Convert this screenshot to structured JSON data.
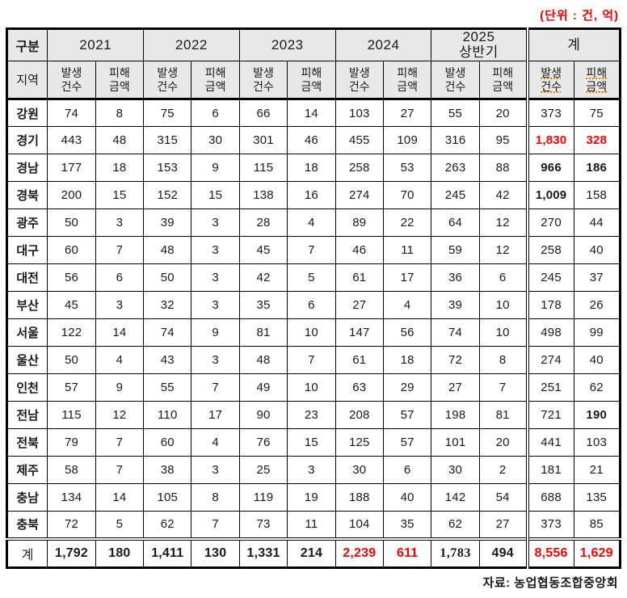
{
  "unit_label": "(단위 : 건, 억)",
  "source_label": "자료: 농업협동조합중앙회",
  "colors": {
    "accent_red": "#ff0000",
    "header_bg": "#e8e8e8",
    "squiggle_orange": "#ff7b00",
    "border": "#000000"
  },
  "table": {
    "corner_top": "구분",
    "corner_bottom": "지역",
    "groups": [
      {
        "label_lines": [
          "2021"
        ],
        "is_total": false
      },
      {
        "label_lines": [
          "2022"
        ],
        "is_total": false
      },
      {
        "label_lines": [
          "2023"
        ],
        "is_total": false
      },
      {
        "label_lines": [
          "2024"
        ],
        "is_total": false
      },
      {
        "label_lines": [
          "2025",
          "상반기"
        ],
        "is_total": false
      },
      {
        "label_lines": [
          "계"
        ],
        "is_total": true
      }
    ],
    "sub_header": {
      "cases_lines": [
        "발생",
        "건수"
      ],
      "amount_lines": [
        "피해",
        "금액"
      ]
    },
    "rows": [
      {
        "region": "강원",
        "values": [
          "74",
          "8",
          "75",
          "6",
          "66",
          "14",
          "103",
          "27",
          "55",
          "20",
          "373",
          "75"
        ]
      },
      {
        "region": "경기",
        "values": [
          "443",
          "48",
          "315",
          "30",
          "301",
          "46",
          "455",
          "109",
          "316",
          "95",
          "1,830",
          "328"
        ],
        "styles": [
          "",
          "",
          "",
          "",
          "",
          "",
          "",
          "",
          "",
          "",
          "r",
          "r"
        ]
      },
      {
        "region": "경남",
        "values": [
          "177",
          "18",
          "153",
          "9",
          "115",
          "18",
          "258",
          "53",
          "263",
          "88",
          "966",
          "186"
        ],
        "styles": [
          "",
          "",
          "",
          "",
          "",
          "",
          "",
          "",
          "",
          "",
          "b",
          "b"
        ]
      },
      {
        "region": "경북",
        "values": [
          "200",
          "15",
          "152",
          "15",
          "138",
          "16",
          "274",
          "70",
          "245",
          "42",
          "1,009",
          "158"
        ],
        "styles": [
          "",
          "",
          "",
          "",
          "",
          "",
          "",
          "",
          "",
          "",
          "b",
          ""
        ]
      },
      {
        "region": "광주",
        "values": [
          "50",
          "3",
          "39",
          "3",
          "28",
          "4",
          "89",
          "22",
          "64",
          "12",
          "270",
          "44"
        ]
      },
      {
        "region": "대구",
        "values": [
          "60",
          "7",
          "48",
          "3",
          "45",
          "7",
          "46",
          "11",
          "59",
          "12",
          "258",
          "40"
        ]
      },
      {
        "region": "대전",
        "values": [
          "56",
          "6",
          "50",
          "3",
          "42",
          "5",
          "61",
          "17",
          "36",
          "6",
          "245",
          "37"
        ]
      },
      {
        "region": "부산",
        "values": [
          "45",
          "3",
          "32",
          "3",
          "35",
          "6",
          "27",
          "4",
          "39",
          "10",
          "178",
          "26"
        ]
      },
      {
        "region": "서울",
        "values": [
          "122",
          "14",
          "74",
          "9",
          "81",
          "10",
          "147",
          "56",
          "74",
          "10",
          "498",
          "99"
        ]
      },
      {
        "region": "울산",
        "values": [
          "50",
          "4",
          "43",
          "3",
          "48",
          "7",
          "61",
          "18",
          "72",
          "8",
          "274",
          "40"
        ]
      },
      {
        "region": "인천",
        "values": [
          "57",
          "9",
          "55",
          "7",
          "49",
          "10",
          "63",
          "29",
          "27",
          "7",
          "251",
          "62"
        ]
      },
      {
        "region": "전남",
        "values": [
          "115",
          "12",
          "110",
          "17",
          "90",
          "23",
          "208",
          "57",
          "198",
          "81",
          "721",
          "190"
        ],
        "styles": [
          "",
          "",
          "",
          "",
          "",
          "",
          "",
          "",
          "",
          "",
          "",
          "b"
        ]
      },
      {
        "region": "전북",
        "values": [
          "79",
          "7",
          "60",
          "4",
          "76",
          "15",
          "125",
          "57",
          "101",
          "20",
          "441",
          "103"
        ]
      },
      {
        "region": "제주",
        "values": [
          "58",
          "7",
          "38",
          "3",
          "25",
          "3",
          "30",
          "6",
          "30",
          "2",
          "181",
          "21"
        ]
      },
      {
        "region": "충남",
        "values": [
          "134",
          "14",
          "105",
          "8",
          "119",
          "19",
          "188",
          "40",
          "142",
          "54",
          "688",
          "135"
        ]
      },
      {
        "region": "충북",
        "values": [
          "72",
          "5",
          "62",
          "7",
          "73",
          "11",
          "104",
          "35",
          "62",
          "27",
          "373",
          "85"
        ]
      }
    ],
    "total_row": {
      "region": "계",
      "values": [
        "1,792",
        "180",
        "1,411",
        "130",
        "1,331",
        "214",
        "2,239",
        "611",
        "1,783",
        "494",
        "8,556",
        "1,629"
      ],
      "styles": [
        "b",
        "b",
        "b",
        "b",
        "b",
        "b",
        "r",
        "r",
        "s",
        "b",
        "r",
        "r"
      ]
    }
  }
}
